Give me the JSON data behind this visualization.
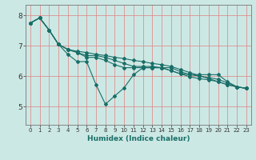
{
  "xlabel": "Humidex (Indice chaleur)",
  "bg_color": "#cce8e4",
  "grid_color_v": "#e08080",
  "grid_color_h": "#e08080",
  "line_color": "#1a6e68",
  "xlim": [
    -0.5,
    23.5
  ],
  "ylim": [
    4.4,
    8.35
  ],
  "yticks": [
    5,
    6,
    7,
    8
  ],
  "xticks": [
    0,
    1,
    2,
    3,
    4,
    5,
    6,
    7,
    8,
    9,
    10,
    11,
    12,
    13,
    14,
    15,
    16,
    17,
    18,
    19,
    20,
    21,
    22,
    23
  ],
  "series": [
    [
      7.75,
      7.92,
      7.52,
      7.05,
      6.72,
      6.48,
      6.48,
      5.72,
      5.08,
      5.35,
      5.62,
      6.05,
      6.28,
      6.28,
      6.28,
      6.28,
      6.15,
      6.05,
      6.05,
      6.05,
      6.05,
      5.82,
      5.65,
      5.6
    ],
    [
      7.75,
      7.92,
      7.52,
      7.05,
      6.88,
      6.78,
      6.62,
      6.62,
      6.52,
      6.38,
      6.28,
      6.28,
      6.28,
      6.28,
      6.28,
      6.18,
      6.08,
      6.05,
      6.0,
      5.95,
      5.9,
      5.78,
      5.65,
      5.6
    ],
    [
      7.75,
      7.92,
      7.52,
      7.05,
      6.88,
      6.78,
      6.68,
      6.68,
      6.62,
      6.52,
      6.42,
      6.32,
      6.32,
      6.32,
      6.28,
      6.18,
      6.08,
      5.98,
      5.92,
      5.88,
      5.82,
      5.72,
      5.65,
      5.6
    ],
    [
      7.75,
      7.92,
      7.52,
      7.05,
      6.88,
      6.82,
      6.78,
      6.72,
      6.68,
      6.62,
      6.58,
      6.52,
      6.48,
      6.42,
      6.38,
      6.32,
      6.22,
      6.12,
      6.02,
      5.92,
      5.82,
      5.72,
      5.65,
      5.6
    ]
  ]
}
